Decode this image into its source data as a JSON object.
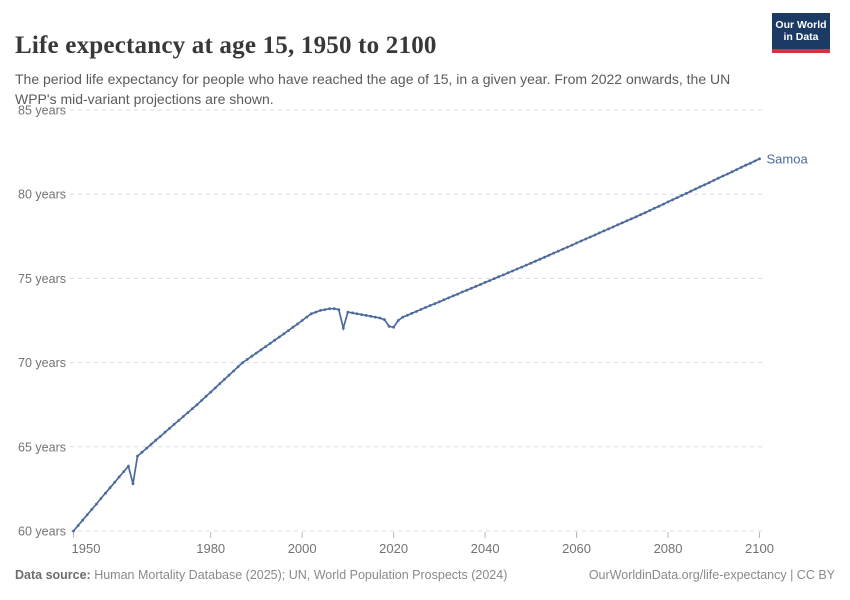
{
  "header": {
    "title": "Life expectancy at age 15, 1950 to 2100",
    "subtitle": "The period life expectancy for people who have reached the age of 15, in a given year. From 2022 onwards, the UN WPP's mid-variant projections are shown.",
    "logo": {
      "line1": "Our World",
      "line2": "in Data"
    }
  },
  "footer": {
    "datasource_label": "Data source:",
    "datasource_text": " Human Mortality Database (2025); UN, World Population Prospects (2024)",
    "link_text": "OurWorldinData.org/life-expectancy | CC BY"
  },
  "colors": {
    "series_blue": "#4C6A9C",
    "gridline": "#dcdcdc",
    "tick": "#b8b8b8",
    "axis_text": "#737373",
    "logo_bg": "#1b3a64",
    "logo_red": "#dc2e45"
  },
  "chart_data": {
    "type": "line",
    "title": "Life expectancy at age 15, 1950 to 2100",
    "xlabel": "",
    "ylabel": "",
    "grid": "dashed-horizontal",
    "legend_position": "end-of-line-label",
    "xlim": [
      1950,
      2100
    ],
    "ylim": [
      60,
      85
    ],
    "x_ticks": [
      1950,
      1980,
      2000,
      2020,
      2040,
      2060,
      2080,
      2100
    ],
    "y_ticks": [
      60,
      65,
      70,
      75,
      80,
      85
    ],
    "y_tick_suffix": " years",
    "series": [
      {
        "name": "Samoa",
        "color": "#4C6A9C",
        "start_year": 1950,
        "values": [
          60.0,
          60.32,
          60.64,
          60.96,
          61.28,
          61.6,
          61.93,
          62.25,
          62.57,
          62.89,
          63.21,
          63.53,
          63.85,
          62.8,
          64.45,
          64.68,
          64.92,
          65.15,
          65.39,
          65.62,
          65.86,
          66.09,
          66.33,
          66.56,
          66.8,
          67.03,
          67.27,
          67.5,
          67.75,
          68.0,
          68.25,
          68.5,
          68.75,
          69.0,
          69.25,
          69.5,
          69.75,
          70.0,
          70.19,
          70.38,
          70.57,
          70.76,
          70.95,
          71.14,
          71.33,
          71.52,
          71.71,
          71.9,
          72.1,
          72.3,
          72.5,
          72.7,
          72.9,
          73.0,
          73.1,
          73.15,
          73.2,
          73.2,
          73.15,
          72.05,
          73.0,
          72.95,
          72.9,
          72.85,
          72.8,
          72.75,
          72.7,
          72.65,
          72.55,
          72.15,
          72.1,
          72.5,
          72.7,
          72.81,
          72.93,
          73.04,
          73.16,
          73.27,
          73.39,
          73.5,
          73.61,
          73.73,
          73.84,
          73.96,
          74.07,
          74.19,
          74.3,
          74.41,
          74.53,
          74.64,
          74.76,
          74.87,
          74.99,
          75.1,
          75.21,
          75.33,
          75.44,
          75.56,
          75.67,
          75.79,
          75.9,
          76.02,
          76.14,
          76.26,
          76.38,
          76.5,
          76.62,
          76.74,
          76.86,
          76.98,
          77.1,
          77.22,
          77.34,
          77.46,
          77.58,
          77.7,
          77.82,
          77.94,
          78.06,
          78.18,
          78.3,
          78.42,
          78.54,
          78.66,
          78.78,
          78.9,
          79.03,
          79.16,
          79.28,
          79.41,
          79.54,
          79.67,
          79.8,
          79.92,
          80.05,
          80.18,
          80.31,
          80.44,
          80.56,
          80.69,
          80.82,
          80.95,
          81.08,
          81.2,
          81.33,
          81.46,
          81.59,
          81.72,
          81.84,
          81.97,
          82.1
        ]
      }
    ]
  }
}
